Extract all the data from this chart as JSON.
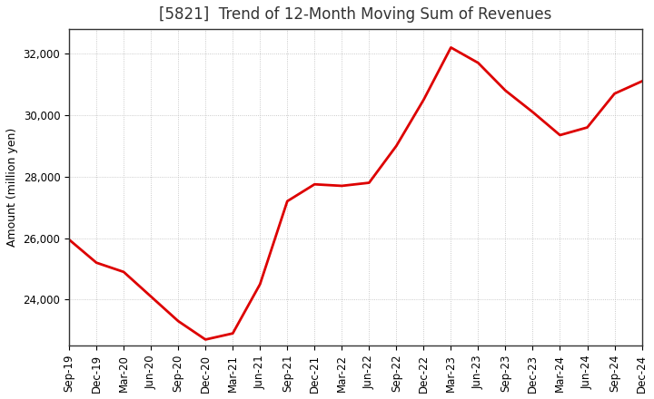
{
  "title": "[5821]  Trend of 12-Month Moving Sum of Revenues",
  "ylabel": "Amount (million yen)",
  "background_color": "#ffffff",
  "line_color": "#dd0000",
  "line_width": 2.0,
  "grid_color": "#bbbbbb",
  "tick_labels": [
    "Sep-19",
    "Dec-19",
    "Mar-20",
    "Jun-20",
    "Sep-20",
    "Dec-20",
    "Mar-21",
    "Jun-21",
    "Sep-21",
    "Dec-21",
    "Mar-22",
    "Jun-22",
    "Sep-22",
    "Dec-22",
    "Mar-23",
    "Jun-23",
    "Sep-23",
    "Dec-23",
    "Mar-24",
    "Jun-24",
    "Sep-24",
    "Dec-24"
  ],
  "values": [
    25950,
    25200,
    24900,
    24100,
    23300,
    22700,
    22900,
    24500,
    27200,
    27750,
    27700,
    27800,
    29000,
    30500,
    32200,
    31700,
    30800,
    30100,
    29350,
    29600,
    30700,
    31100
  ],
  "ylim": [
    22500,
    32800
  ],
  "yticks": [
    24000,
    26000,
    28000,
    30000,
    32000
  ],
  "title_fontsize": 12,
  "ylabel_fontsize": 9,
  "tick_fontsize": 8.5,
  "title_color": "#333333"
}
